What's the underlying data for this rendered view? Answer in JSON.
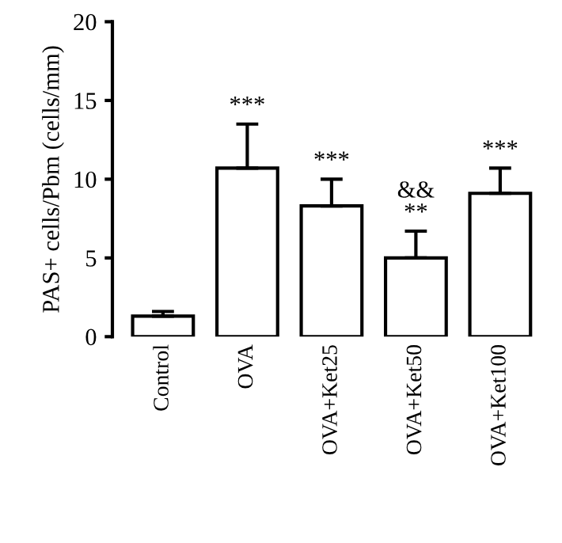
{
  "chart_data": {
    "type": "bar",
    "ylabel": "PAS+ cells/Pbm (cells/mm)",
    "categories": [
      "Control",
      "OVA",
      "OVA+Ket25",
      "OVA+Ket50",
      "OVA+Ket100"
    ],
    "values": [
      1.3,
      10.7,
      8.3,
      5.0,
      9.1
    ],
    "errors": [
      [
        1.3,
        1.6
      ],
      [
        10.7,
        13.5
      ],
      [
        8.3,
        10.0
      ],
      [
        5.0,
        6.7
      ],
      [
        9.1,
        10.7
      ]
    ],
    "color": "#ffffff",
    "ylim": [
      0,
      20
    ],
    "yticks": [
      0,
      5,
      10,
      15,
      20
    ],
    "grid": false,
    "legend": false,
    "annotations": [
      {
        "text": "***",
        "x": "OVA",
        "y": 13.5
      },
      {
        "text": "***",
        "x": "OVA+Ket25",
        "y": 10.0
      },
      {
        "text": "&&\n**",
        "x": "OVA+Ket50",
        "y": 6.7
      },
      {
        "text": "***",
        "x": "OVA+Ket100",
        "y": 10.7
      }
    ]
  }
}
